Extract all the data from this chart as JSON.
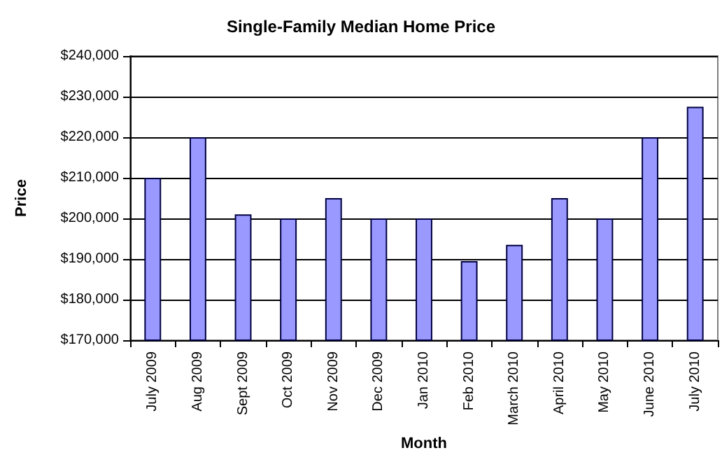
{
  "chart_data": {
    "type": "bar",
    "title": "Single-Family Median Home Price",
    "xlabel": "Month",
    "ylabel": "Price",
    "categories": [
      "July 2009",
      "Aug 2009",
      "Sept 2009",
      "Oct 2009",
      "Nov 2009",
      "Dec 2009",
      "Jan 2010",
      "Feb 2010",
      "March 2010",
      "April 2010",
      "May 2010",
      "June 2010",
      "July 2010"
    ],
    "values": [
      210000,
      220000,
      201000,
      200000,
      205000,
      200000,
      200000,
      189500,
      193500,
      205000,
      200000,
      220000,
      227500
    ],
    "color": "#9999ff",
    "ylim": [
      170000,
      240000
    ],
    "yticks": [
      {
        "value": 170000,
        "label": "$170,000"
      },
      {
        "value": 180000,
        "label": "$180,000"
      },
      {
        "value": 190000,
        "label": "$190,000"
      },
      {
        "value": 200000,
        "label": "$200,000"
      },
      {
        "value": 210000,
        "label": "$210,000"
      },
      {
        "value": 220000,
        "label": "$220,000"
      },
      {
        "value": 230000,
        "label": "$230,000"
      },
      {
        "value": 240000,
        "label": "$240,000"
      }
    ],
    "grid": "y"
  }
}
